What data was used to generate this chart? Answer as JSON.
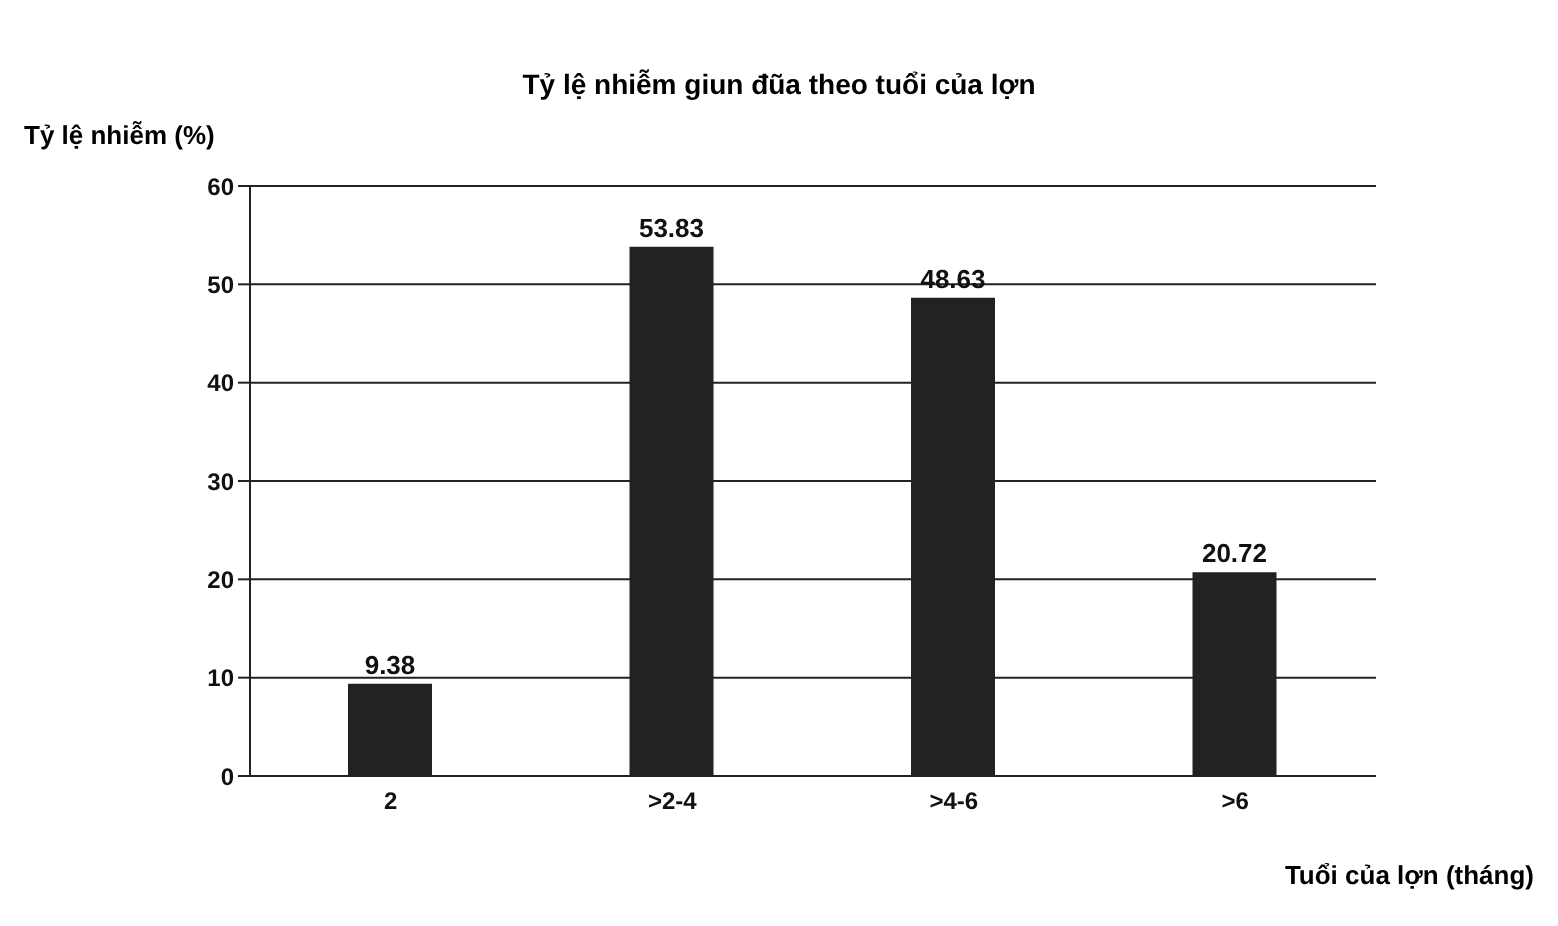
{
  "chart_data": {
    "type": "bar",
    "title": "Tỷ lệ nhiễm giun đũa theo tuổi của lợn",
    "xlabel": "Tuổi của lợn (tháng)",
    "ylabel": "Tỷ lệ nhiễm (%)",
    "categories": [
      "2",
      ">2-4",
      ">4-6",
      ">6"
    ],
    "values": [
      9.38,
      53.83,
      48.63,
      20.72
    ],
    "color": "#222222",
    "ylim": [
      0,
      60
    ],
    "yticks": [
      0,
      10,
      20,
      30,
      40,
      50,
      60
    ],
    "grid": "y",
    "data_labels": true
  }
}
